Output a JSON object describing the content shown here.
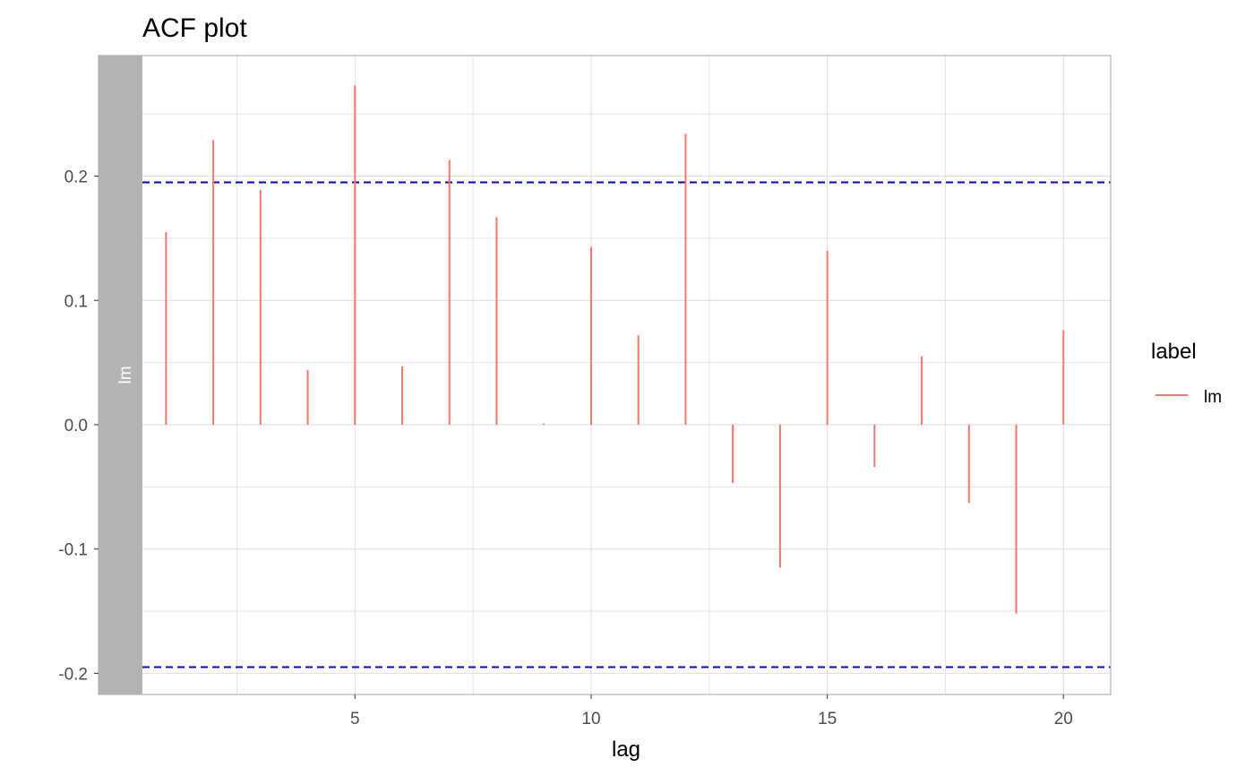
{
  "chart_data": {
    "type": "bar",
    "title": "ACF plot",
    "xlabel": "lag",
    "ylabel": "",
    "facet_label": "lm",
    "x": [
      1,
      2,
      3,
      4,
      5,
      6,
      7,
      8,
      9,
      10,
      11,
      12,
      13,
      14,
      15,
      16,
      17,
      18,
      19,
      20
    ],
    "series": [
      {
        "name": "lm",
        "values": [
          0.155,
          0.229,
          0.189,
          0.044,
          0.273,
          0.047,
          0.213,
          0.167,
          0.001,
          0.143,
          0.072,
          0.234,
          -0.047,
          -0.115,
          0.14,
          -0.034,
          0.055,
          -0.063,
          -0.152,
          0.076
        ]
      }
    ],
    "xlim": [
      0.5,
      21
    ],
    "ylim": [
      -0.217,
      0.297
    ],
    "x_ticks": [
      5,
      10,
      15,
      20
    ],
    "y_ticks": [
      -0.2,
      -0.1,
      0.0,
      0.1,
      0.2
    ],
    "x_tick_labels": [
      "5",
      "10",
      "15",
      "20"
    ],
    "y_tick_labels": [
      "-0.2",
      "-0.1",
      "0.0",
      "0.1",
      "0.2"
    ],
    "x_minor_ticks": [
      2.5,
      7.5,
      12.5,
      17.5
    ],
    "y_minor_ticks": [
      -0.15,
      -0.05,
      0.05,
      0.15,
      0.25
    ],
    "confidence_bounds": [
      0.195,
      -0.195
    ],
    "grid": true,
    "legend": {
      "title": "label",
      "entries": [
        "lm"
      ],
      "position": "right"
    },
    "colors": {
      "series": "#f8766d",
      "bounds": "#0000cd",
      "strip": "#b3b3b3",
      "grid": "#e0e0e0",
      "border": "#b3b3b3"
    }
  }
}
